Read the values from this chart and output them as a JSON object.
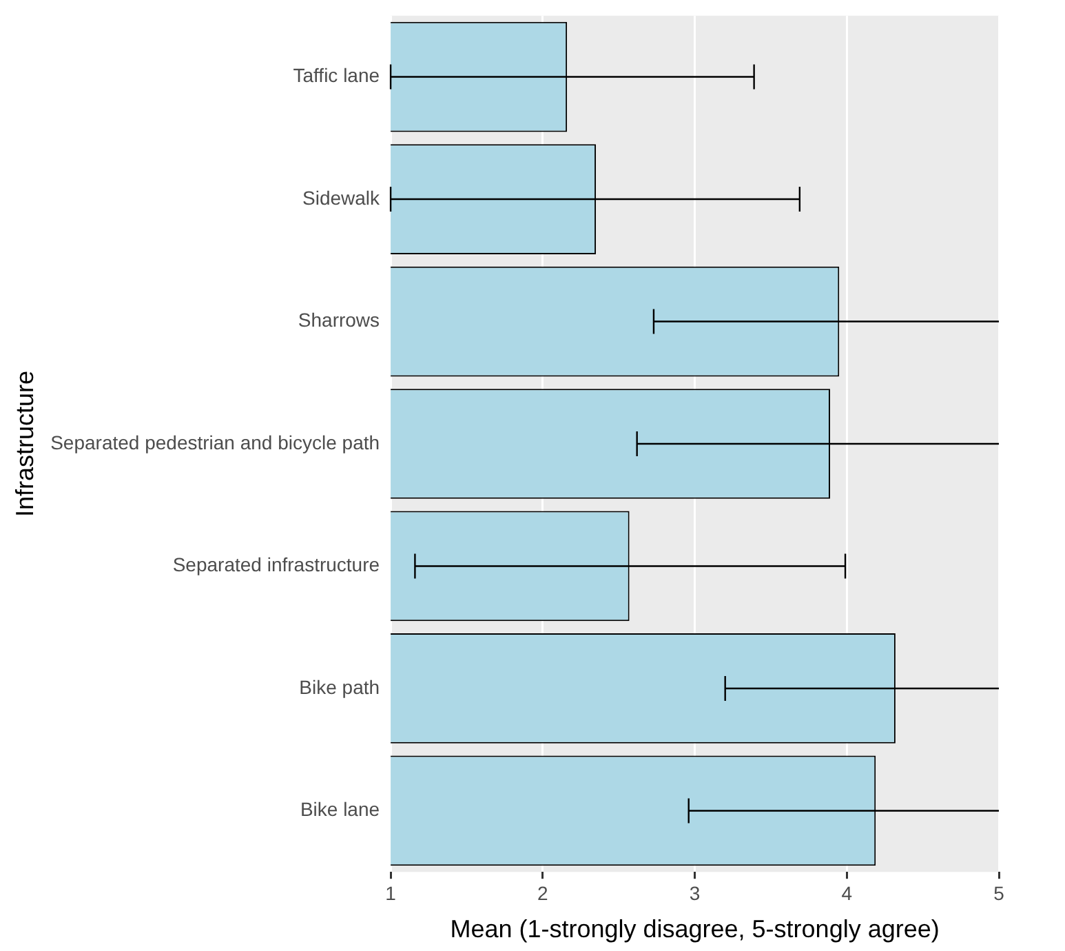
{
  "chart_data": {
    "type": "bar",
    "orientation": "horizontal",
    "xlabel": "Mean (1-strongly disagree, 5-strongly agree)",
    "ylabel": "Infrastructure",
    "categories": [
      "Taffic lane",
      "Sidewalk",
      "Sharrows",
      "Separated pedestrian and bicycle path",
      "Separated infrastructure",
      "Bike path",
      "Bike lane"
    ],
    "values": [
      2.16,
      2.35,
      3.95,
      3.89,
      2.57,
      4.32,
      4.19
    ],
    "errors": [
      [
        1,
        3.39
      ],
      [
        1,
        3.69
      ],
      [
        2.73,
        5
      ],
      [
        2.62,
        5
      ],
      [
        1.16,
        3.99
      ],
      [
        3.2,
        5
      ],
      [
        2.96,
        5
      ]
    ],
    "color": "#add8e6",
    "xlim": [
      1,
      5
    ],
    "xticks": [
      1,
      2,
      3,
      4,
      5
    ],
    "grid": "x",
    "legend": false
  }
}
